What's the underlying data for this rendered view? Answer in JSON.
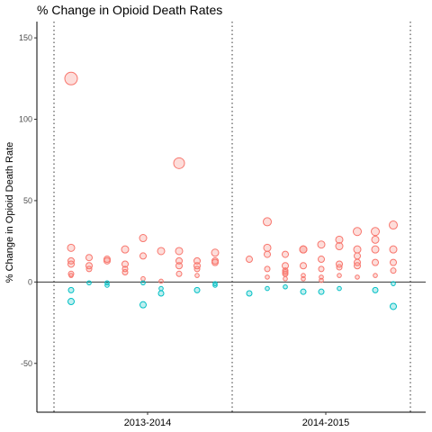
{
  "chart_data": {
    "type": "scatter",
    "title": "% Change in Opioid Death Rates",
    "xlabel": "",
    "ylabel": "% Change in Opioid Death Rate",
    "categories": [
      "2013-2014",
      "2014-2015"
    ],
    "ylim": [
      -80,
      160
    ],
    "yticks": [
      -50,
      0,
      50,
      100,
      150
    ],
    "grid": false,
    "legend": "none",
    "positive_color": "#f8766d",
    "negative_color": "#00bfc4",
    "series": [
      {
        "category": "2013-2014",
        "points": [
          {
            "x": 1,
            "y": 125
          },
          {
            "x": 1,
            "y": 21
          },
          {
            "x": 1,
            "y": 13
          },
          {
            "x": 1,
            "y": 11
          },
          {
            "x": 1,
            "y": 5
          },
          {
            "x": 1,
            "y": 4
          },
          {
            "x": 1,
            "y": -5
          },
          {
            "x": 1,
            "y": -12
          },
          {
            "x": 2,
            "y": 15
          },
          {
            "x": 2,
            "y": 10
          },
          {
            "x": 2,
            "y": 8
          },
          {
            "x": 2,
            "y": -0.5
          },
          {
            "x": 3,
            "y": 14
          },
          {
            "x": 3,
            "y": 13
          },
          {
            "x": 3,
            "y": -0.5
          },
          {
            "x": 3,
            "y": -2
          },
          {
            "x": 4,
            "y": 20
          },
          {
            "x": 4,
            "y": 11
          },
          {
            "x": 4,
            "y": 8
          },
          {
            "x": 4,
            "y": 6
          },
          {
            "x": 5,
            "y": 27
          },
          {
            "x": 5,
            "y": 16
          },
          {
            "x": 5,
            "y": 2
          },
          {
            "x": 5,
            "y": -0.5
          },
          {
            "x": 5,
            "y": -14
          },
          {
            "x": 6,
            "y": 19
          },
          {
            "x": 6,
            "y": 0.5
          },
          {
            "x": 6,
            "y": -4
          },
          {
            "x": 6,
            "y": -7
          },
          {
            "x": 7,
            "y": 73
          },
          {
            "x": 7,
            "y": 19
          },
          {
            "x": 7,
            "y": 13
          },
          {
            "x": 7,
            "y": 10
          },
          {
            "x": 7,
            "y": 5
          },
          {
            "x": 8,
            "y": 13
          },
          {
            "x": 8,
            "y": 10
          },
          {
            "x": 8,
            "y": 8
          },
          {
            "x": 8,
            "y": 4
          },
          {
            "x": 8,
            "y": -5
          },
          {
            "x": 9,
            "y": 18
          },
          {
            "x": 9,
            "y": 13
          },
          {
            "x": 9,
            "y": 12
          },
          {
            "x": 9,
            "y": -1
          },
          {
            "x": 9,
            "y": -2
          }
        ]
      },
      {
        "category": "2014-2015",
        "points": [
          {
            "x": 1,
            "y": 14
          },
          {
            "x": 1,
            "y": -7
          },
          {
            "x": 2,
            "y": 37
          },
          {
            "x": 2,
            "y": 21
          },
          {
            "x": 2,
            "y": 17
          },
          {
            "x": 2,
            "y": 8
          },
          {
            "x": 2,
            "y": 3
          },
          {
            "x": 2,
            "y": -4
          },
          {
            "x": 3,
            "y": 17
          },
          {
            "x": 3,
            "y": 10
          },
          {
            "x": 3,
            "y": 7
          },
          {
            "x": 3,
            "y": 6
          },
          {
            "x": 3,
            "y": 5
          },
          {
            "x": 3,
            "y": 2
          },
          {
            "x": 3,
            "y": -3
          },
          {
            "x": 4,
            "y": 20
          },
          {
            "x": 4,
            "y": 20
          },
          {
            "x": 4,
            "y": 10
          },
          {
            "x": 4,
            "y": 4
          },
          {
            "x": 4,
            "y": 2
          },
          {
            "x": 4,
            "y": -6
          },
          {
            "x": 5,
            "y": 23
          },
          {
            "x": 5,
            "y": 14
          },
          {
            "x": 5,
            "y": 8
          },
          {
            "x": 5,
            "y": 3
          },
          {
            "x": 5,
            "y": 1
          },
          {
            "x": 5,
            "y": -6
          },
          {
            "x": 6,
            "y": 26
          },
          {
            "x": 6,
            "y": 22
          },
          {
            "x": 6,
            "y": 11
          },
          {
            "x": 6,
            "y": 9
          },
          {
            "x": 6,
            "y": 4
          },
          {
            "x": 6,
            "y": -4
          },
          {
            "x": 7,
            "y": 31
          },
          {
            "x": 7,
            "y": 20
          },
          {
            "x": 7,
            "y": 16
          },
          {
            "x": 7,
            "y": 12
          },
          {
            "x": 7,
            "y": 10
          },
          {
            "x": 7,
            "y": 3
          },
          {
            "x": 8,
            "y": 31
          },
          {
            "x": 8,
            "y": 26
          },
          {
            "x": 8,
            "y": 20
          },
          {
            "x": 8,
            "y": 12
          },
          {
            "x": 8,
            "y": 4
          },
          {
            "x": 8,
            "y": -5
          },
          {
            "x": 9,
            "y": 35
          },
          {
            "x": 9,
            "y": 20
          },
          {
            "x": 9,
            "y": 12
          },
          {
            "x": 9,
            "y": 7
          },
          {
            "x": 9,
            "y": -1
          },
          {
            "x": 9,
            "y": -15
          }
        ]
      }
    ]
  }
}
